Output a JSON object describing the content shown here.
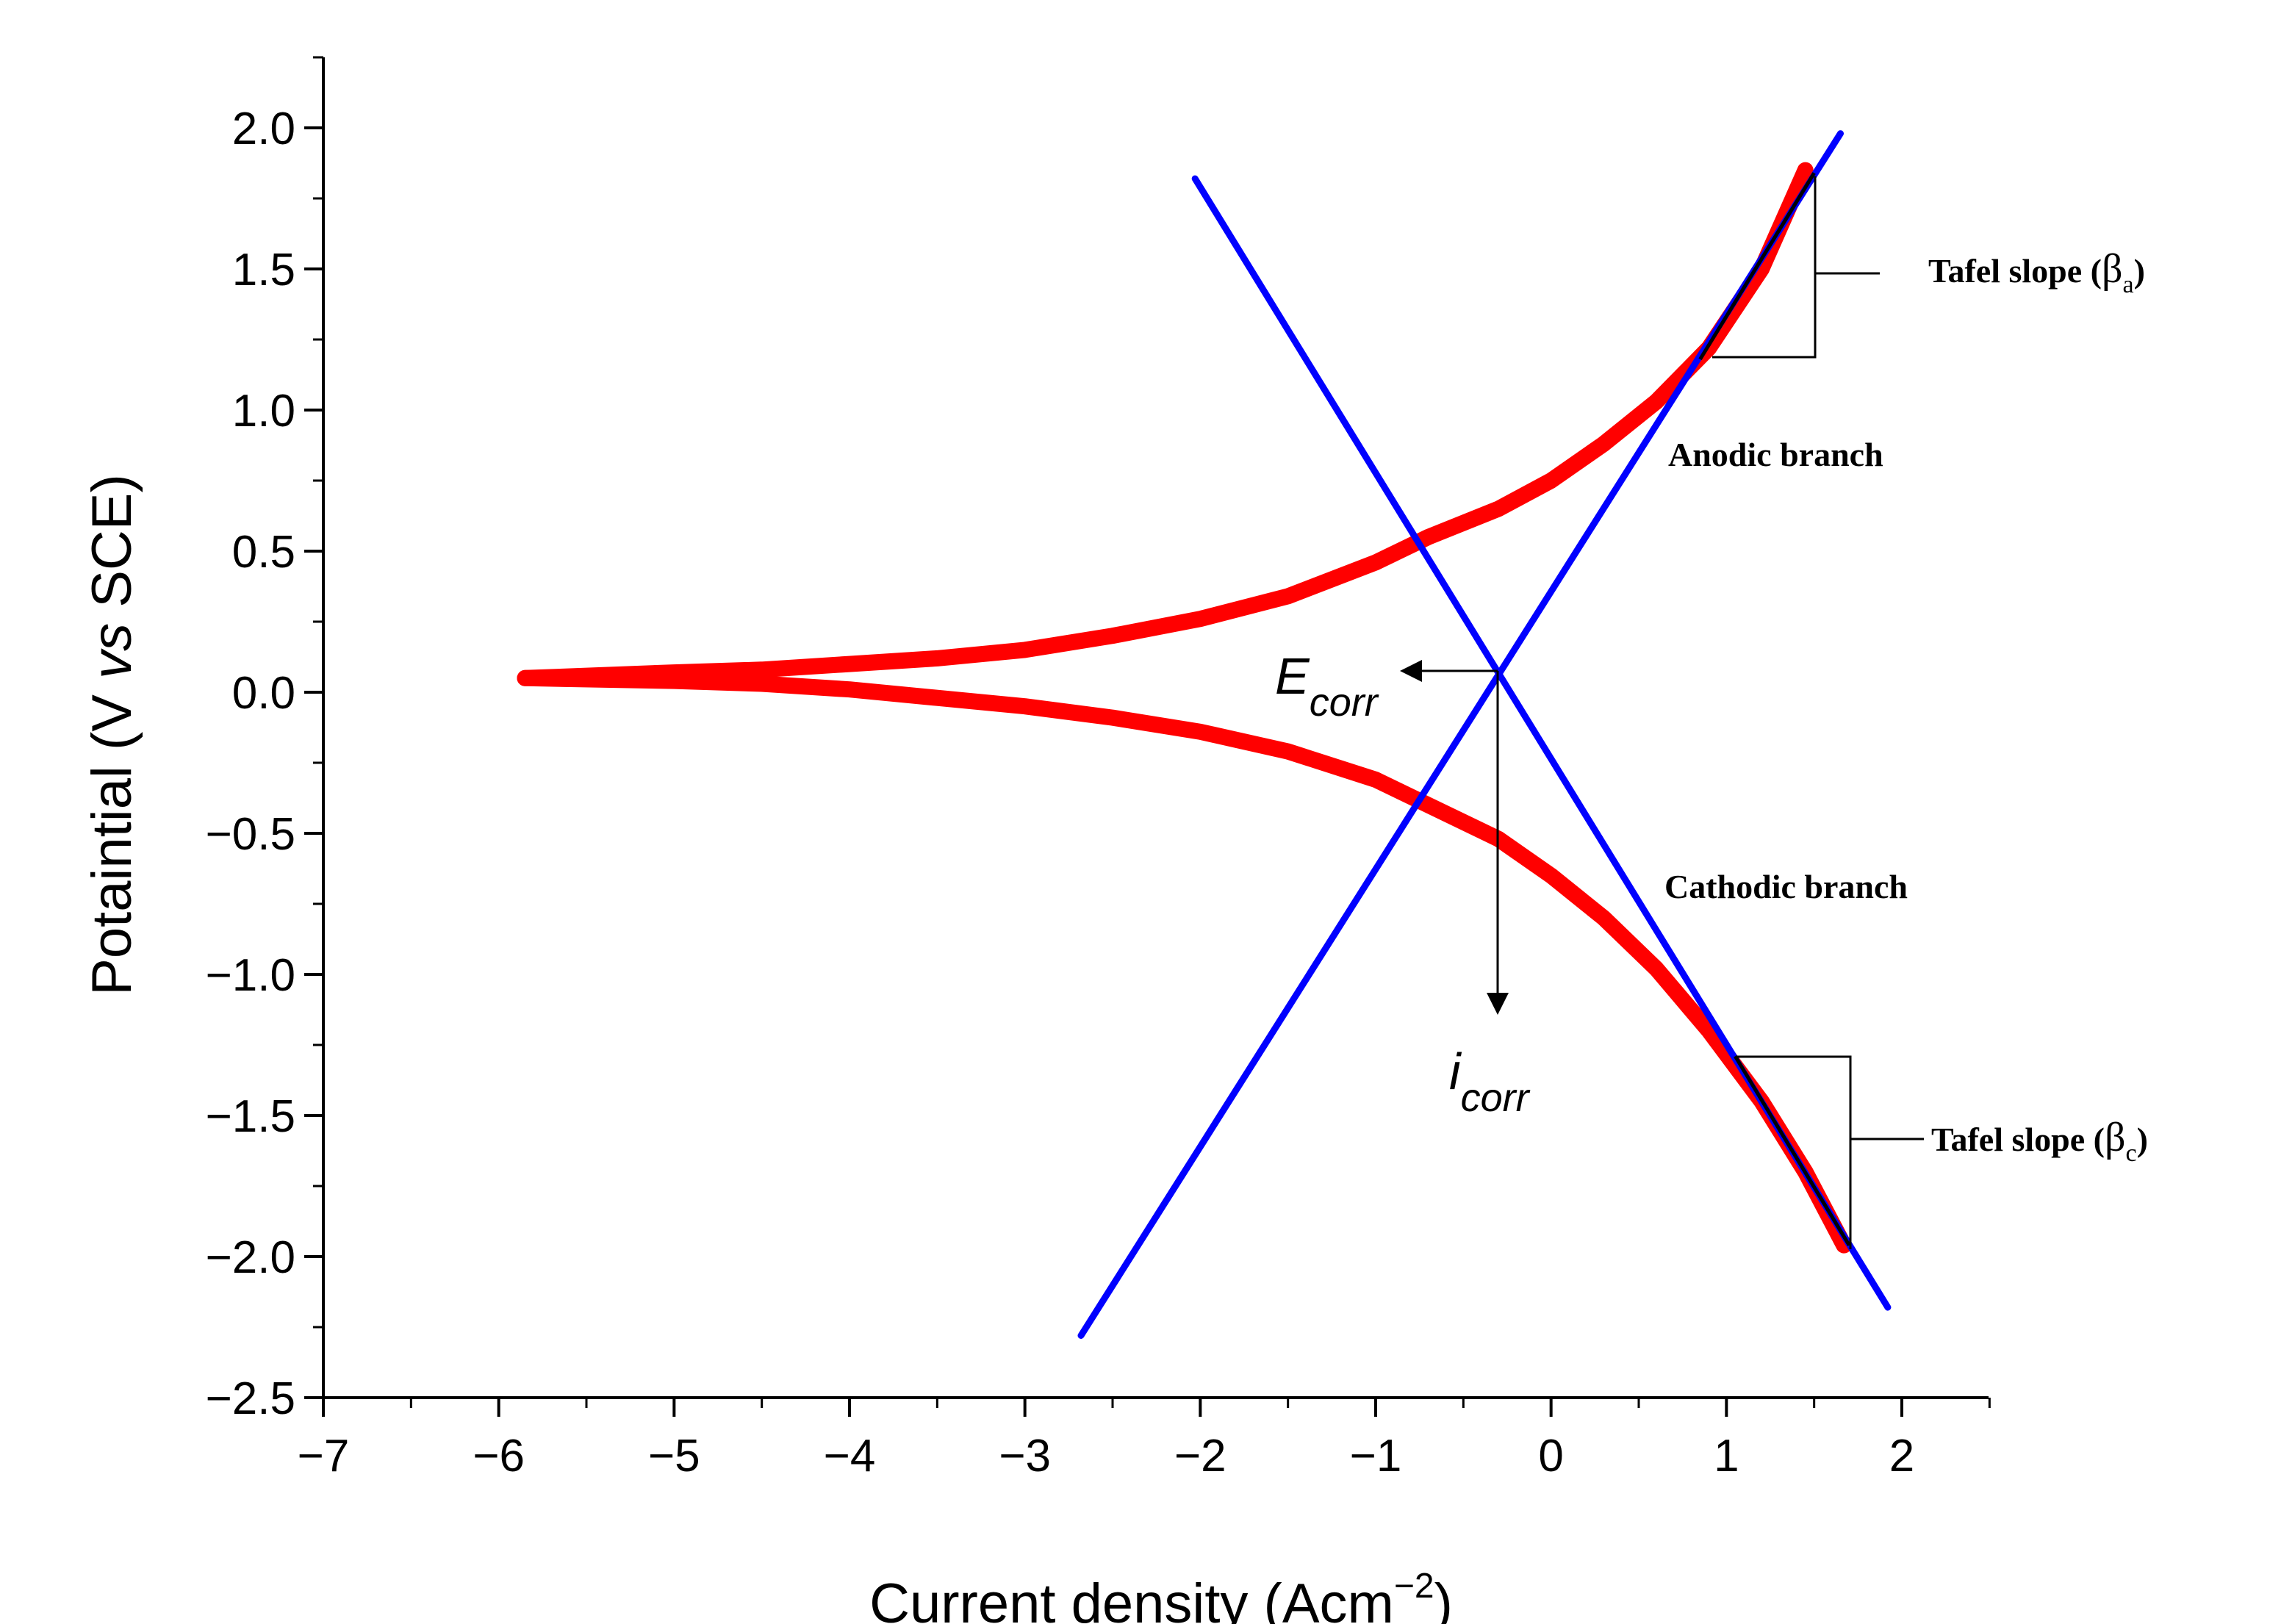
{
  "chart_data": {
    "type": "line",
    "xlabel": "Current density (Acm",
    "xlabel_superscript": "−2",
    "xlabel_close": ")",
    "ylabel_parts": [
      "Potaintial (V ",
      "vs",
      " SCE)"
    ],
    "xlim": [
      -7,
      2.5
    ],
    "ylim": [
      -2.5,
      2.25
    ],
    "xticks": [
      -7,
      -6,
      -5,
      -4,
      -3,
      -2,
      -1,
      0,
      1,
      2
    ],
    "xtick_labels": [
      "−7",
      "−6",
      "−5",
      "−4",
      "−3",
      "−2",
      "−1",
      "0",
      "1",
      "2"
    ],
    "yticks": [
      2.0,
      1.5,
      1.0,
      0.5,
      0.0,
      -0.5,
      -1.0,
      -1.5,
      -2.0,
      -2.5
    ],
    "ytick_labels": [
      "2.0",
      "1.5",
      "1.0",
      "0.5",
      "0.0",
      "−0.5",
      "−1.0",
      "−1.5",
      "−2.0",
      "−2.5"
    ],
    "grid": false,
    "series": [
      {
        "color": "#ff0000",
        "x": [
          -5.85,
          -5.0,
          -4.5,
          -4.0,
          -3.5,
          -3.0,
          -2.5,
          -2.0,
          -1.5,
          -1.0,
          -0.7,
          -0.3,
          0.0,
          0.3,
          0.6,
          0.9,
          1.2,
          1.45
        ],
        "y": [
          0.05,
          0.07,
          0.08,
          0.1,
          0.12,
          0.15,
          0.2,
          0.26,
          0.34,
          0.46,
          0.55,
          0.65,
          0.75,
          0.88,
          1.03,
          1.22,
          1.5,
          1.85
        ]
      },
      {
        "color": "#ff0000",
        "x": [
          -5.85,
          -5.0,
          -4.5,
          -4.0,
          -3.5,
          -3.0,
          -2.5,
          -2.0,
          -1.5,
          -1.0,
          -0.7,
          -0.3,
          0.0,
          0.3,
          0.6,
          0.9,
          1.2,
          1.45,
          1.67
        ],
        "y": [
          0.05,
          0.04,
          0.03,
          0.01,
          -0.02,
          -0.05,
          -0.09,
          -0.14,
          -0.21,
          -0.31,
          -0.4,
          -0.52,
          -0.65,
          -0.8,
          -0.98,
          -1.2,
          -1.45,
          -1.7,
          -1.96
        ]
      },
      {
        "color": "#0000ff",
        "x": [
          -2.03,
          1.92
        ],
        "y": [
          1.82,
          -2.18
        ]
      },
      {
        "color": "#0000ff",
        "x": [
          -2.68,
          1.65
        ],
        "y": [
          -2.28,
          1.98
        ]
      }
    ],
    "annotations": {
      "ecorr": {
        "main": "E",
        "sub": "corr",
        "x": -0.32,
        "y": 0.07
      },
      "icorr": {
        "main": "i",
        "sub": "corr"
      },
      "anodic": "Anodic branch",
      "cathodic": "Cathodic branch",
      "tafel_a": {
        "text": "Tafel slope (",
        "greek": "β",
        "sub": "a",
        "close": ")"
      },
      "tafel_c": {
        "text": "Tafel slope (",
        "greek": "β",
        "sub": "c",
        "close": ")"
      }
    }
  }
}
